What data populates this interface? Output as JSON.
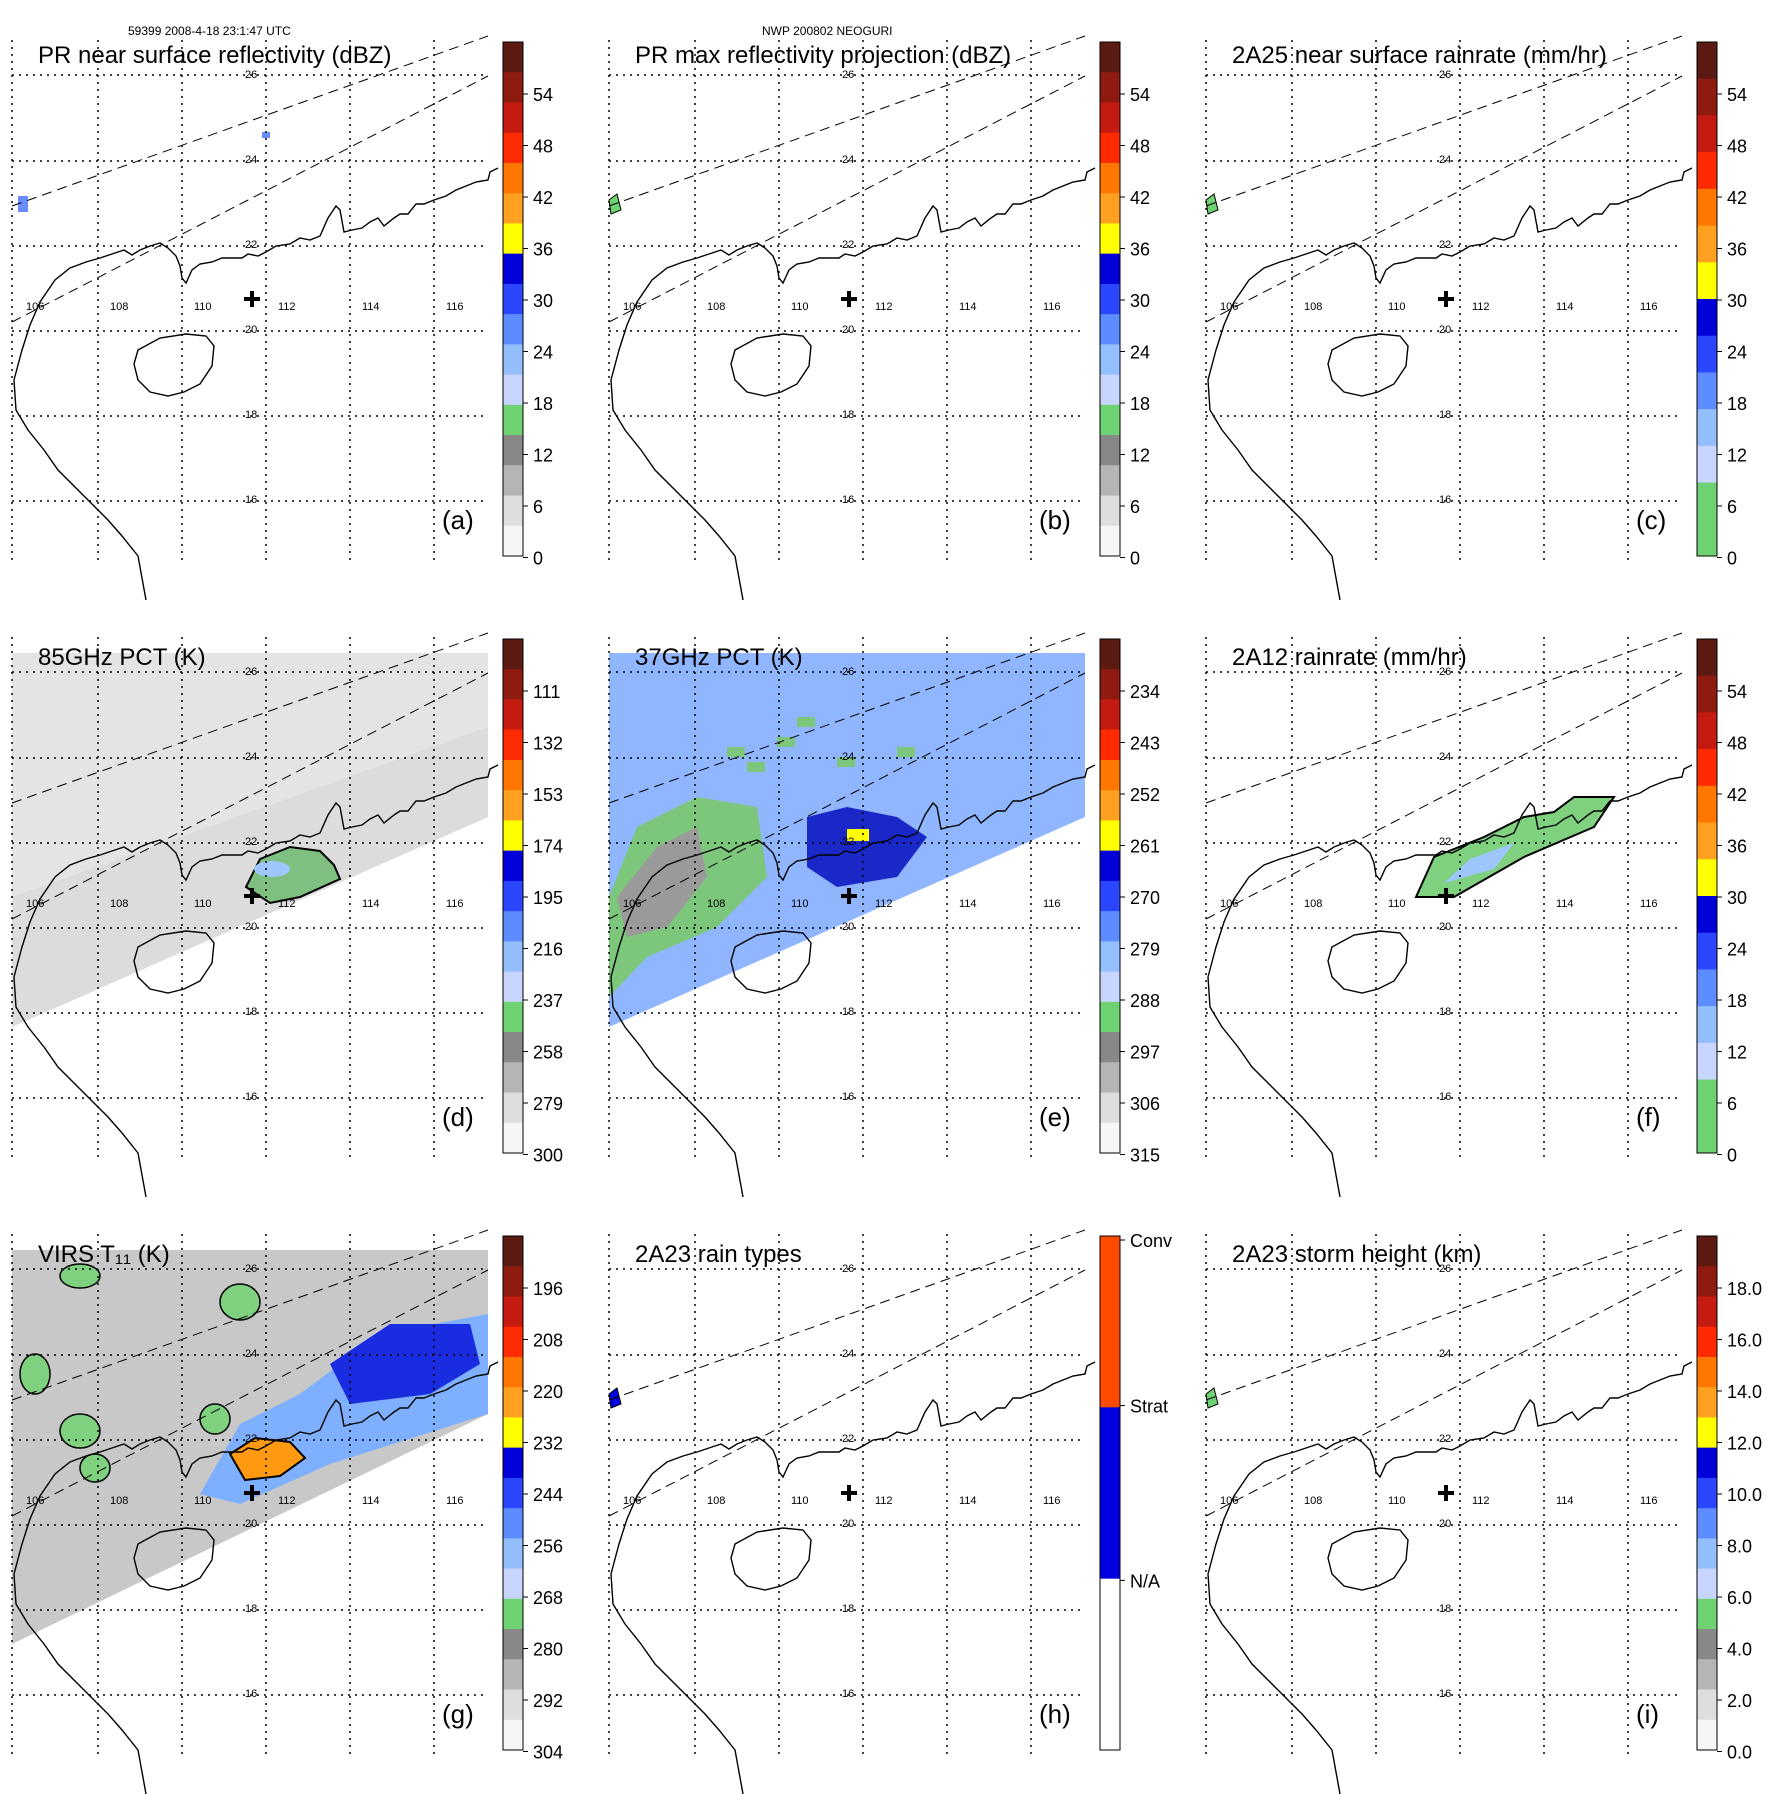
{
  "header": {
    "left": "59399 2008-4-18 23:1:47 UTC",
    "center": "NWP 200802 NEOGURI"
  },
  "map": {
    "lon_labels": [
      "106",
      "108",
      "110",
      "112",
      "114",
      "116"
    ],
    "lat_labels": [
      "26",
      "24",
      "22",
      "20",
      "18",
      "16"
    ],
    "storm_marker": "cross-icon"
  },
  "panels": [
    {
      "id": "a",
      "tag": "(a)",
      "title": "PR near surface reflectivity (dBZ)",
      "colorbar": {
        "ticks": [
          "54",
          "48",
          "42",
          "36",
          "30",
          "24",
          "18",
          "12",
          "6",
          "0"
        ],
        "colors": [
          "#5b1b12",
          "#8f1a10",
          "#c51a0f",
          "#ff2a00",
          "#ff7700",
          "#ffa020",
          "#ffff00",
          "#0000d8",
          "#2a46ff",
          "#5c8cff",
          "#94bfff",
          "#c8d6ff",
          "#6fd272",
          "#888888",
          "#b5b5b5",
          "#dedede",
          "#f6f6f6"
        ]
      }
    },
    {
      "id": "b",
      "tag": "(b)",
      "title": "PR max reflectivity projection (dBZ)",
      "colorbar": {
        "ticks": [
          "54",
          "48",
          "42",
          "36",
          "30",
          "24",
          "18",
          "12",
          "6",
          "0"
        ],
        "colors": [
          "#5b1b12",
          "#8f1a10",
          "#c51a0f",
          "#ff2a00",
          "#ff7700",
          "#ffa020",
          "#ffff00",
          "#0000d8",
          "#2a46ff",
          "#5c8cff",
          "#94bfff",
          "#c8d6ff",
          "#6fd272",
          "#888888",
          "#b5b5b5",
          "#dedede",
          "#f6f6f6"
        ]
      }
    },
    {
      "id": "c",
      "tag": "(c)",
      "title": "2A25 near surface rainrate (mm/hr)",
      "colorbar": {
        "ticks": [
          "54",
          "48",
          "42",
          "36",
          "30",
          "24",
          "18",
          "12",
          "6",
          "0"
        ],
        "colors": [
          "#5b1b12",
          "#8f1a10",
          "#c51a0f",
          "#ff2a00",
          "#ff7700",
          "#ffa020",
          "#ffff00",
          "#0000d8",
          "#2a46ff",
          "#5c8cff",
          "#94bfff",
          "#c8d6ff",
          "#6fd272",
          "#6fd272"
        ]
      }
    },
    {
      "id": "d",
      "tag": "(d)",
      "title": "85GHz PCT (K)",
      "colorbar": {
        "ticks": [
          "111",
          "132",
          "153",
          "174",
          "195",
          "216",
          "237",
          "258",
          "279",
          "300"
        ],
        "colors": [
          "#5b1b12",
          "#8f1a10",
          "#c51a0f",
          "#ff2a00",
          "#ff7700",
          "#ffa020",
          "#ffff00",
          "#0000d8",
          "#2a46ff",
          "#5c8cff",
          "#94bfff",
          "#c8d6ff",
          "#6fd272",
          "#888888",
          "#b5b5b5",
          "#dedede",
          "#f6f6f6"
        ]
      }
    },
    {
      "id": "e",
      "tag": "(e)",
      "title": "37GHz PCT (K)",
      "colorbar": {
        "ticks": [
          "234",
          "243",
          "252",
          "261",
          "270",
          "279",
          "288",
          "297",
          "306",
          "315"
        ],
        "colors": [
          "#5b1b12",
          "#8f1a10",
          "#c51a0f",
          "#ff2a00",
          "#ff7700",
          "#ffa020",
          "#ffff00",
          "#0000d8",
          "#2a46ff",
          "#5c8cff",
          "#94bfff",
          "#c8d6ff",
          "#6fd272",
          "#888888",
          "#b5b5b5",
          "#dedede",
          "#f6f6f6"
        ]
      }
    },
    {
      "id": "f",
      "tag": "(f)",
      "title": "2A12 rainrate (mm/hr)",
      "colorbar": {
        "ticks": [
          "54",
          "48",
          "42",
          "36",
          "30",
          "24",
          "18",
          "12",
          "6",
          "0"
        ],
        "colors": [
          "#5b1b12",
          "#8f1a10",
          "#c51a0f",
          "#ff2a00",
          "#ff7700",
          "#ffa020",
          "#ffff00",
          "#0000d8",
          "#2a46ff",
          "#5c8cff",
          "#94bfff",
          "#c8d6ff",
          "#6fd272",
          "#6fd272"
        ]
      }
    },
    {
      "id": "g",
      "tag": "(g)",
      "title": "VIRS T₁₁ (K)",
      "colorbar": {
        "ticks": [
          "196",
          "208",
          "220",
          "232",
          "244",
          "256",
          "268",
          "280",
          "292",
          "304"
        ],
        "colors": [
          "#5b1b12",
          "#8f1a10",
          "#c51a0f",
          "#ff2a00",
          "#ff7700",
          "#ffa020",
          "#ffff00",
          "#0000d8",
          "#2a46ff",
          "#5c8cff",
          "#94bfff",
          "#c8d6ff",
          "#6fd272",
          "#888888",
          "#b5b5b5",
          "#dedede",
          "#f6f6f6"
        ]
      }
    },
    {
      "id": "h",
      "tag": "(h)",
      "title": "2A23 rain types",
      "colorbar": {
        "ticks": [
          "Conv",
          "Strat",
          "N/A"
        ],
        "colors": [
          "#ff4a00",
          "#0000e0",
          "#ffffff"
        ]
      }
    },
    {
      "id": "i",
      "tag": "(i)",
      "title": "2A23 storm height (km)",
      "colorbar": {
        "ticks": [
          "18.0",
          "16.0",
          "14.0",
          "12.0",
          "10.0",
          "8.0",
          "6.0",
          "4.0",
          "2.0",
          "0.0"
        ],
        "colors": [
          "#5b1b12",
          "#8f1a10",
          "#c51a0f",
          "#ff2a00",
          "#ff7700",
          "#ffa020",
          "#ffff00",
          "#0000d8",
          "#2a46ff",
          "#5c8cff",
          "#94bfff",
          "#c8d6ff",
          "#6fd272",
          "#888888",
          "#b5b5b5",
          "#dedede",
          "#f6f6f6"
        ]
      }
    }
  ]
}
